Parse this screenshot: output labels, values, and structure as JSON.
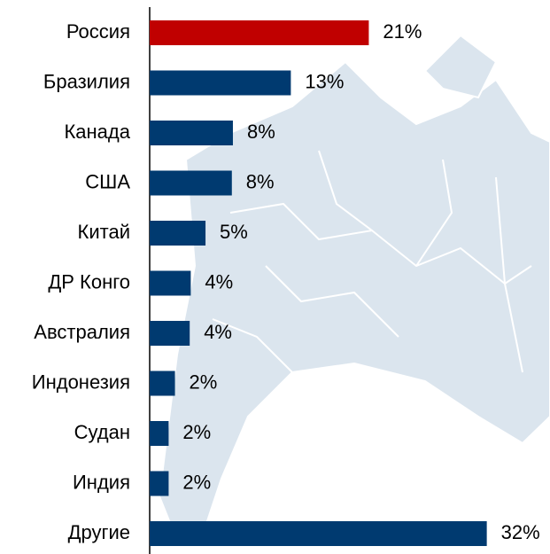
{
  "chart_data": {
    "type": "bar",
    "orientation": "horizontal",
    "categories": [
      "Россия",
      "Бразилия",
      "Канада",
      "США",
      "Китай",
      "ДР Конго",
      "Австралия",
      "Индонезия",
      "Судан",
      "Индия",
      "Другие"
    ],
    "values": [
      20.8,
      13.4,
      7.9,
      7.8,
      5.3,
      3.9,
      3.8,
      2.4,
      1.8,
      1.8,
      32
    ],
    "value_labels": [
      "21%",
      "13%",
      "8%",
      "8%",
      "5%",
      "4%",
      "4%",
      "2%",
      "2%",
      "2%",
      "32%"
    ],
    "colors": [
      "#c00000",
      "#003a70",
      "#003a70",
      "#003a70",
      "#003a70",
      "#003a70",
      "#003a70",
      "#003a70",
      "#003a70",
      "#003a70",
      "#003a70"
    ],
    "xlim": [
      0,
      38
    ]
  }
}
